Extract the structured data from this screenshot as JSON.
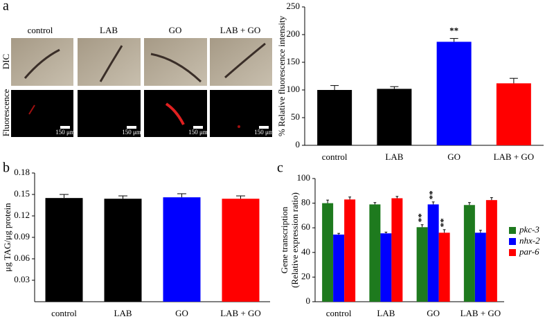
{
  "figure": {
    "panel_labels": [
      "a",
      "b",
      "c"
    ],
    "images": {
      "columns": [
        "control",
        "LAB",
        "GO",
        "LAB + GO"
      ],
      "rows": [
        "DIC",
        "Fluorescence"
      ],
      "scale_bar": "150 μm"
    }
  },
  "chart_data": [
    {
      "type": "bar",
      "ylabel": "% Relative fluorescence intensity",
      "categories": [
        "control",
        "LAB",
        "GO",
        "LAB + GO"
      ],
      "values": [
        100,
        102,
        187,
        112
      ],
      "errors": [
        8,
        4,
        6,
        9
      ],
      "colors": [
        "#000000",
        "#000000",
        "#0000ff",
        "#ff0000"
      ],
      "ylim": [
        0,
        250
      ],
      "yticks": [
        0,
        50,
        100,
        150,
        200,
        250
      ],
      "annotations": [
        {
          "text": "**",
          "x": "GO"
        }
      ]
    },
    {
      "type": "bar",
      "ylabel": "μg TAG/μg protein",
      "categories": [
        "control",
        "LAB",
        "GO",
        "LAB + GO"
      ],
      "values": [
        0.145,
        0.144,
        0.146,
        0.144
      ],
      "errors": [
        0.005,
        0.004,
        0.005,
        0.004
      ],
      "colors": [
        "#000000",
        "#000000",
        "#0000ff",
        "#ff0000"
      ],
      "ylim": [
        0,
        0.18
      ],
      "yticks": [
        0.03,
        0.06,
        0.09,
        0.12,
        0.15,
        0.18
      ]
    },
    {
      "type": "bar",
      "ylabel": [
        "Gene transcription",
        "(Relative expression ratio)"
      ],
      "categories": [
        "control",
        "LAB",
        "GO",
        "LAB + GO"
      ],
      "series": [
        {
          "name": "pkc-3",
          "color": "#1e7a1e",
          "values": [
            80,
            79,
            60.5,
            78.5
          ],
          "errors": [
            2.5,
            1.5,
            2,
            2
          ],
          "annotations": [
            {
              "text": "**",
              "x": "GO"
            }
          ]
        },
        {
          "name": "nhx-2",
          "color": "#0000ff",
          "values": [
            54.5,
            55.5,
            79,
            56
          ],
          "errors": [
            1,
            1,
            2,
            2
          ],
          "annotations": [
            {
              "text": "**",
              "x": "GO"
            }
          ]
        },
        {
          "name": "par-6",
          "color": "#ff0000",
          "values": [
            83,
            84,
            56,
            82.5
          ],
          "errors": [
            2,
            1.5,
            2.5,
            2
          ],
          "annotations": [
            {
              "text": "**",
              "x": "GO"
            }
          ]
        }
      ],
      "ylim": [
        0,
        100
      ],
      "yticks": [
        0,
        20,
        40,
        60,
        80,
        100
      ]
    }
  ]
}
